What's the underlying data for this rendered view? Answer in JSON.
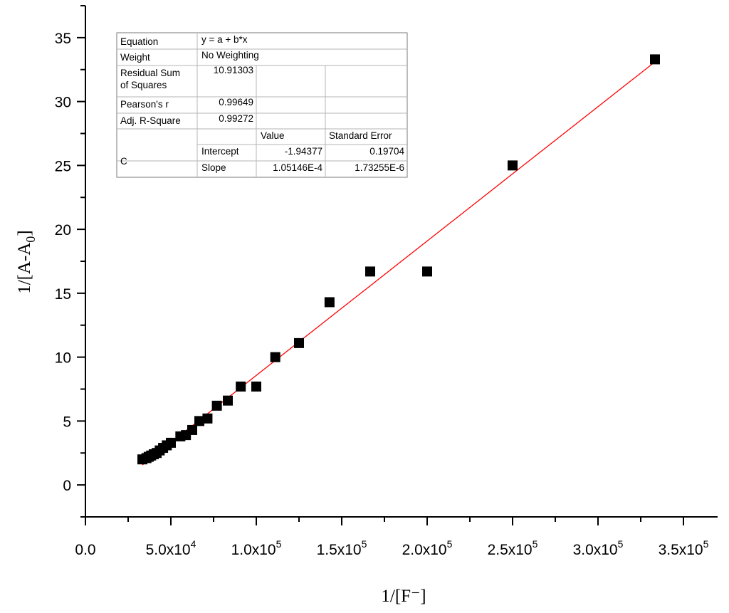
{
  "chart_data": {
    "type": "scatter",
    "xlabel": "1/[F⁻]",
    "ylabel": {
      "main": "1/[A-A",
      "sub": "0",
      "end": "]"
    },
    "xlim": [
      0,
      370000
    ],
    "ylim": [
      -2.5,
      37.5
    ],
    "x_ticks": [
      0,
      50000,
      100000,
      150000,
      200000,
      250000,
      300000,
      350000
    ],
    "x_tick_labels": [
      {
        "base": "0.0",
        "exp": ""
      },
      {
        "base": "5.0x10",
        "exp": "4"
      },
      {
        "base": "1.0x10",
        "exp": "5"
      },
      {
        "base": "1.5x10",
        "exp": "5"
      },
      {
        "base": "2.0x10",
        "exp": "5"
      },
      {
        "base": "2.5x10",
        "exp": "5"
      },
      {
        "base": "3.0x10",
        "exp": "5"
      },
      {
        "base": "3.5x10",
        "exp": "5"
      }
    ],
    "y_ticks": [
      0,
      5,
      10,
      15,
      20,
      25,
      30,
      35
    ],
    "y_tick_labels": [
      "0",
      "5",
      "10",
      "15",
      "20",
      "25",
      "30",
      "35"
    ],
    "grid": false,
    "series": [
      {
        "marker": "square",
        "color": "#000000",
        "x": [
          33333,
          35714,
          37037,
          38462,
          40000,
          41667,
          43478,
          45455,
          47619,
          50000,
          55556,
          58824,
          62500,
          66667,
          71429,
          76923,
          83333,
          90909,
          100000,
          111111,
          125000,
          142857,
          166667,
          200000,
          250000,
          333333
        ],
        "y": [
          2.0,
          2.1,
          2.2,
          2.3,
          2.4,
          2.5,
          2.7,
          2.9,
          3.1,
          3.3,
          3.8,
          3.9,
          4.3,
          5.0,
          5.2,
          6.2,
          6.6,
          7.7,
          7.7,
          10.0,
          11.1,
          14.3,
          16.7,
          16.7,
          25.0,
          33.3
        ]
      }
    ],
    "fit": {
      "color": "#ff0000",
      "intercept": -1.94377,
      "slope": 0.000105146,
      "x_range": [
        33333,
        333333
      ]
    },
    "table": {
      "rows": [
        [
          "Equation",
          "y = a + b*x",
          "",
          ""
        ],
        [
          "Weight",
          "No Weighting",
          "",
          ""
        ],
        [
          "Residual Sum of Squares",
          "10.91303",
          "",
          ""
        ],
        [
          "Pearson's r",
          "0.99649",
          "",
          ""
        ],
        [
          "Adj. R-Square",
          "0.99272",
          "",
          ""
        ]
      ],
      "header": [
        "",
        "",
        "Value",
        "Standard Error"
      ],
      "group_label": "C",
      "params": [
        [
          "Intercept",
          "-1.94377",
          "0.19704"
        ],
        [
          "Slope",
          "1.05146E-4",
          "1.73255E-6"
        ]
      ]
    }
  }
}
